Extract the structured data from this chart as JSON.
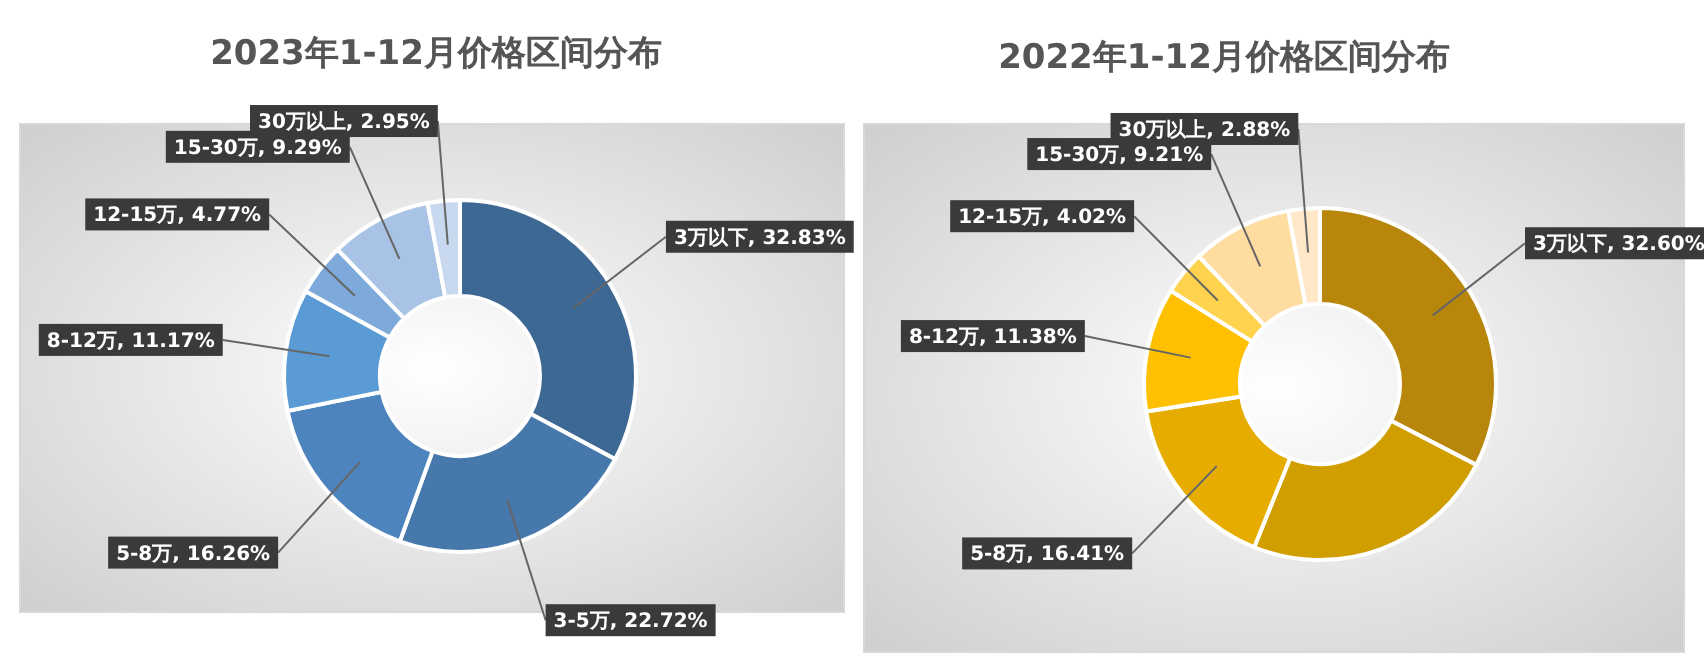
{
  "chart_data": [
    {
      "type": "donut",
      "title": "2023年1-12月价格区间分布",
      "categories": [
        "3万以下",
        "3-5万",
        "5-8万",
        "8-12万",
        "12-15万",
        "15-30万",
        "30万以上"
      ],
      "values": [
        32.83,
        22.72,
        16.26,
        11.17,
        4.77,
        9.29,
        2.95
      ],
      "value_labels": [
        "32.83%",
        "22.72%",
        "16.26%",
        "11.17%",
        "4.77%",
        "9.29%",
        "2.95%"
      ],
      "colors": [
        "#3d6894",
        "#4678ab",
        "#4d84bd",
        "#5b9bd5",
        "#7eaadb",
        "#a8c3e5",
        "#c8d9ef"
      ]
    },
    {
      "type": "donut",
      "title": "2022年1-12月价格区间分布",
      "categories": [
        "3万以下",
        null,
        "5-8万",
        "8-12万",
        "12-15万",
        "15-30万",
        "30万以上"
      ],
      "values": [
        32.6,
        23.5,
        16.41,
        11.38,
        4.02,
        9.21,
        2.88
      ],
      "value_labels": [
        "32.60%",
        null,
        "16.41%",
        "11.38%",
        "4.02%",
        "9.21%",
        "2.88%"
      ],
      "colors": [
        "#b8860b",
        "#d19e00",
        "#e6ad00",
        "#ffc000",
        "#ffd34d",
        "#ffdca0",
        "#ffe8c8"
      ]
    }
  ]
}
